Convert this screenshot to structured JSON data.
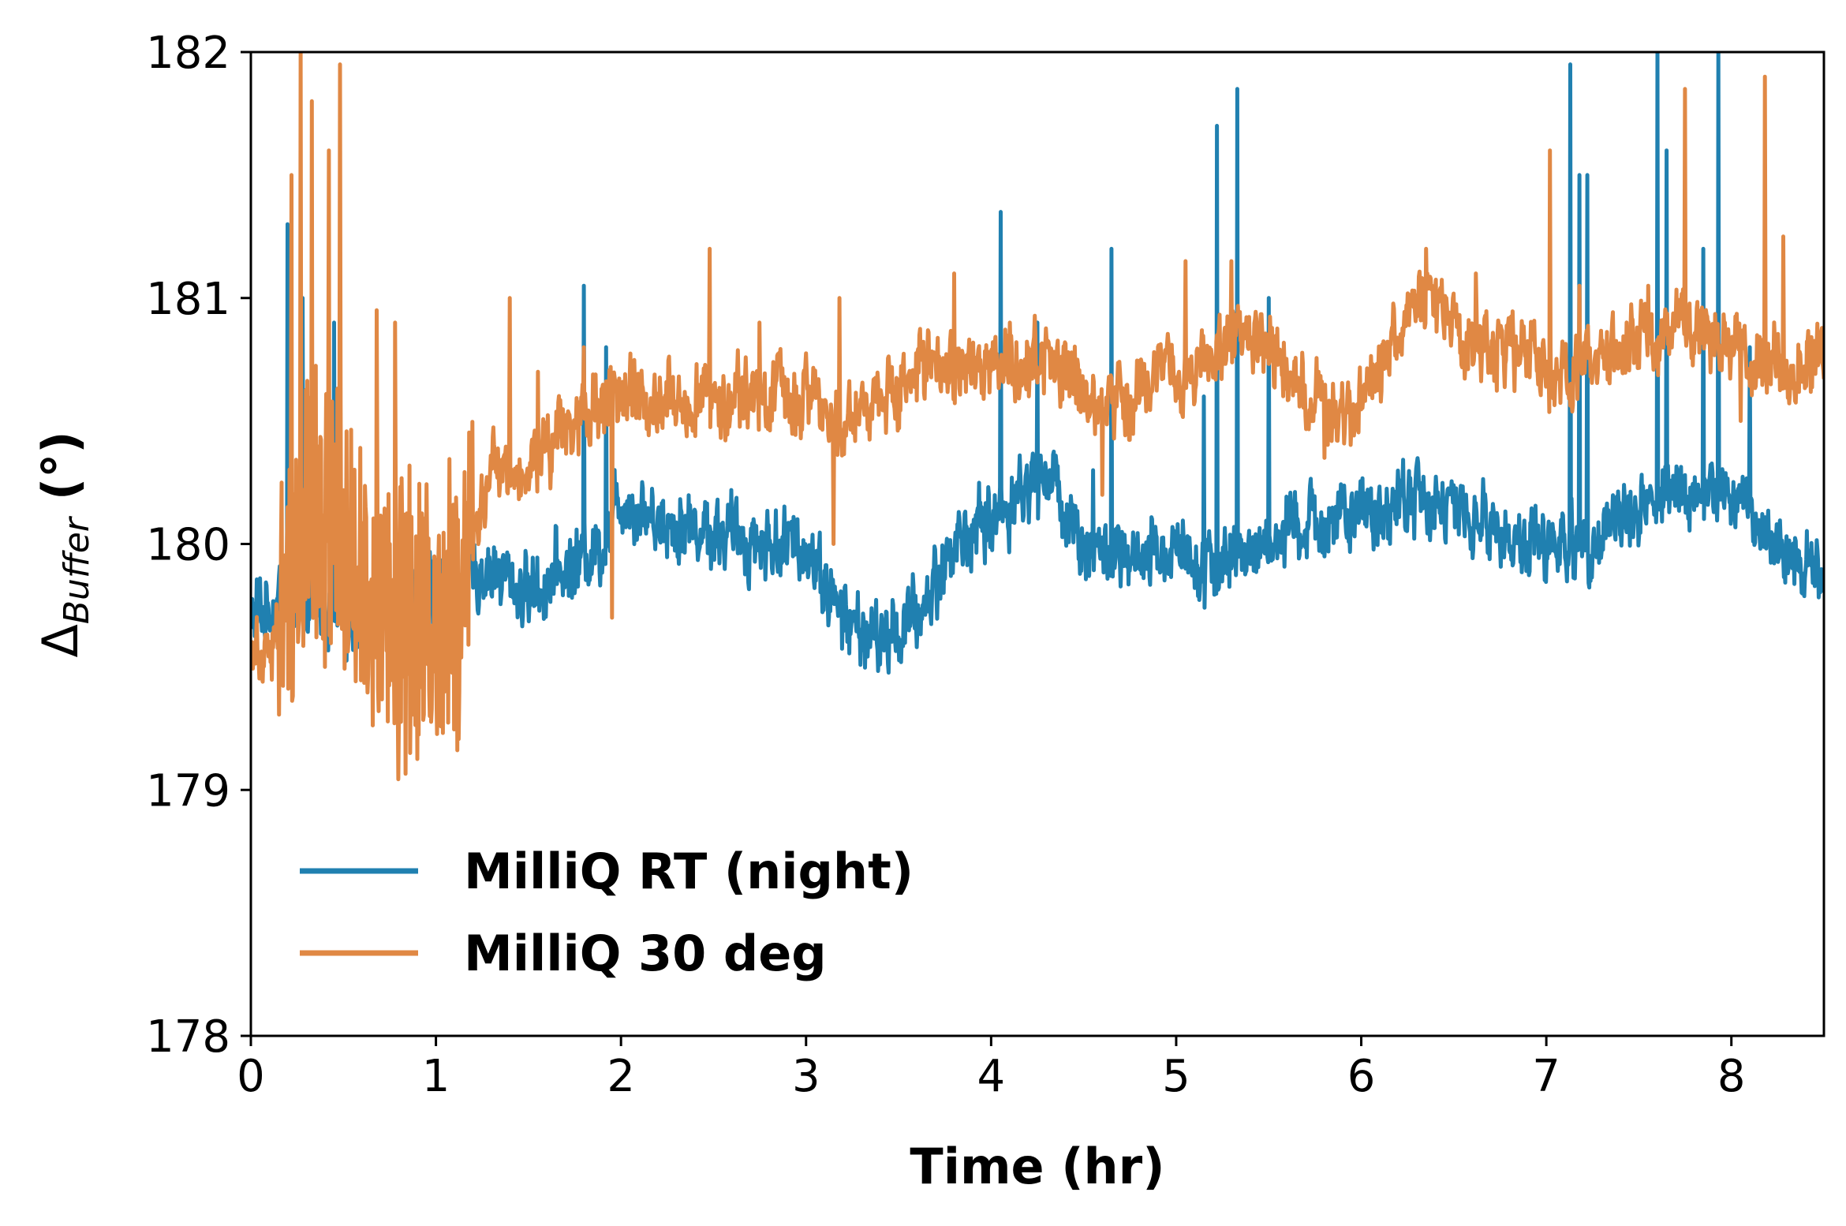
{
  "chart_data": {
    "type": "line",
    "xlabel": "Time (hr)",
    "ylabel": {
      "symbol": "Δ",
      "subscript": "Buffer",
      "unit": "(°)"
    },
    "xlim": [
      0,
      8.5
    ],
    "ylim": [
      178,
      182
    ],
    "xticks": [
      0,
      1,
      2,
      3,
      4,
      5,
      6,
      7,
      8
    ],
    "yticks": [
      178,
      179,
      180,
      181,
      182
    ],
    "grid": false,
    "legend_position": "lower-left",
    "series": [
      {
        "name": "MilliQ RT (night)",
        "color": "#2080b0",
        "noise": 0.12,
        "points": [
          [
            0.0,
            179.7
          ],
          [
            0.2,
            179.8
          ],
          [
            0.5,
            179.7
          ],
          [
            0.8,
            179.75
          ],
          [
            1.0,
            179.8
          ],
          [
            1.3,
            179.9
          ],
          [
            1.5,
            179.8
          ],
          [
            1.7,
            179.9
          ],
          [
            1.9,
            180.0
          ],
          [
            2.0,
            180.2
          ],
          [
            2.2,
            180.1
          ],
          [
            2.5,
            180.05
          ],
          [
            2.8,
            180.0
          ],
          [
            3.0,
            180.0
          ],
          [
            3.2,
            179.7
          ],
          [
            3.4,
            179.6
          ],
          [
            3.6,
            179.7
          ],
          [
            3.8,
            180.0
          ],
          [
            4.0,
            180.1
          ],
          [
            4.3,
            180.3
          ],
          [
            4.5,
            180.0
          ],
          [
            4.8,
            179.9
          ],
          [
            5.0,
            180.0
          ],
          [
            5.2,
            179.9
          ],
          [
            5.5,
            180.0
          ],
          [
            5.8,
            180.1
          ],
          [
            6.0,
            180.1
          ],
          [
            6.3,
            180.2
          ],
          [
            6.6,
            180.1
          ],
          [
            6.9,
            180.0
          ],
          [
            7.1,
            180.0
          ],
          [
            7.3,
            180.05
          ],
          [
            7.6,
            180.2
          ],
          [
            8.0,
            180.2
          ],
          [
            8.3,
            179.95
          ],
          [
            8.5,
            179.9
          ]
        ],
        "spikes": [
          [
            0.2,
            181.3
          ],
          [
            0.28,
            181.0
          ],
          [
            0.45,
            180.9
          ],
          [
            1.8,
            181.05
          ],
          [
            1.92,
            180.8
          ],
          [
            4.05,
            181.35
          ],
          [
            4.25,
            180.9
          ],
          [
            4.55,
            180.3
          ],
          [
            4.65,
            181.2
          ],
          [
            5.22,
            181.7
          ],
          [
            5.33,
            181.85
          ],
          [
            5.15,
            180.6
          ],
          [
            5.5,
            181.0
          ],
          [
            7.13,
            181.95
          ],
          [
            7.18,
            181.5
          ],
          [
            7.22,
            181.5
          ],
          [
            7.6,
            182.0
          ],
          [
            7.65,
            181.6
          ],
          [
            7.93,
            182.0
          ],
          [
            7.85,
            181.2
          ],
          [
            8.1,
            180.8
          ]
        ]
      },
      {
        "name": "MilliQ 30 deg",
        "color": "#e08844",
        "noise": 0.12,
        "points": [
          [
            0.0,
            179.6
          ],
          [
            0.15,
            179.6
          ],
          [
            0.3,
            180.3
          ],
          [
            0.5,
            180.0
          ],
          [
            0.7,
            179.8
          ],
          [
            0.9,
            179.6
          ],
          [
            1.1,
            179.7
          ],
          [
            1.3,
            180.3
          ],
          [
            1.5,
            180.3
          ],
          [
            1.7,
            180.5
          ],
          [
            1.9,
            180.6
          ],
          [
            2.1,
            180.6
          ],
          [
            2.3,
            180.6
          ],
          [
            2.5,
            180.6
          ],
          [
            2.8,
            180.6
          ],
          [
            3.0,
            180.6
          ],
          [
            3.2,
            180.5
          ],
          [
            3.4,
            180.6
          ],
          [
            3.6,
            180.7
          ],
          [
            3.8,
            180.7
          ],
          [
            4.0,
            180.7
          ],
          [
            4.3,
            180.75
          ],
          [
            4.5,
            180.6
          ],
          [
            4.7,
            180.6
          ],
          [
            4.9,
            180.7
          ],
          [
            5.1,
            180.7
          ],
          [
            5.3,
            180.85
          ],
          [
            5.5,
            180.8
          ],
          [
            5.7,
            180.6
          ],
          [
            5.9,
            180.5
          ],
          [
            6.1,
            180.7
          ],
          [
            6.3,
            181.0
          ],
          [
            6.5,
            180.9
          ],
          [
            6.7,
            180.8
          ],
          [
            6.9,
            180.75
          ],
          [
            7.1,
            180.7
          ],
          [
            7.3,
            180.75
          ],
          [
            7.5,
            180.8
          ],
          [
            7.7,
            180.9
          ],
          [
            8.0,
            180.8
          ],
          [
            8.2,
            180.7
          ],
          [
            8.5,
            180.75
          ]
        ],
        "spikes": [
          [
            0.22,
            181.5
          ],
          [
            0.27,
            182.0
          ],
          [
            0.33,
            181.8
          ],
          [
            0.42,
            181.6
          ],
          [
            0.48,
            181.95
          ],
          [
            0.4,
            179.5
          ],
          [
            0.68,
            180.95
          ],
          [
            0.78,
            180.9
          ],
          [
            0.88,
            179.35
          ],
          [
            1.05,
            179.4
          ],
          [
            1.4,
            181.0
          ],
          [
            1.55,
            180.7
          ],
          [
            1.8,
            180.8
          ],
          [
            1.95,
            179.7
          ],
          [
            2.48,
            181.2
          ],
          [
            2.75,
            180.9
          ],
          [
            3.15,
            180.0
          ],
          [
            3.18,
            181.0
          ],
          [
            3.8,
            181.1
          ],
          [
            4.1,
            180.9
          ],
          [
            4.6,
            180.2
          ],
          [
            5.05,
            181.15
          ],
          [
            5.3,
            181.15
          ],
          [
            5.8,
            180.35
          ],
          [
            6.35,
            181.2
          ],
          [
            6.62,
            181.1
          ],
          [
            7.02,
            181.6
          ],
          [
            7.18,
            181.05
          ],
          [
            7.55,
            181.05
          ],
          [
            7.75,
            181.85
          ],
          [
            8.05,
            180.5
          ],
          [
            8.18,
            181.9
          ],
          [
            8.28,
            181.25
          ]
        ]
      }
    ]
  }
}
